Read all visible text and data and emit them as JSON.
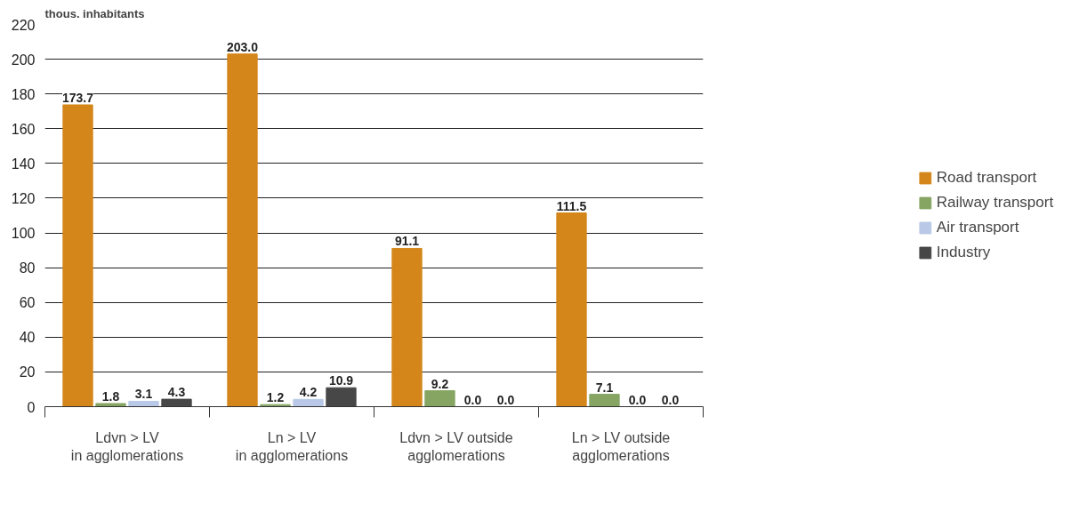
{
  "chart_data": {
    "type": "bar",
    "ylabel": "thous. inhabitants",
    "categories": [
      "Ldvn > LV\nin agglomerations",
      "Ln > LV\nin agglomerations",
      "Ldvn > LV outside\nagglomerations",
      "Ln > LV outside\nagglomerations"
    ],
    "series": [
      {
        "name": "Road transport",
        "color": "#d4861a",
        "values": [
          173.7,
          203.0,
          91.1,
          111.5
        ],
        "value_labels": [
          "173.7",
          "203.0",
          "91.1",
          "111.5"
        ]
      },
      {
        "name": "Railway transport",
        "color": "#86a563",
        "values": [
          1.8,
          1.2,
          9.2,
          7.1
        ],
        "value_labels": [
          "1.8",
          "1.2",
          "9.2",
          "7.1"
        ]
      },
      {
        "name": "Air transport",
        "color": "#b8c8e6",
        "values": [
          3.1,
          4.2,
          0.0,
          0.0
        ],
        "value_labels": [
          "3.1",
          "4.2",
          "0.0",
          "0.0"
        ]
      },
      {
        "name": "Industry",
        "color": "#474747",
        "values": [
          4.3,
          10.9,
          0.0,
          0.0
        ],
        "value_labels": [
          "4.3",
          "10.9",
          "0.0",
          "0.0"
        ]
      }
    ],
    "ylim": [
      0,
      220
    ],
    "yticks": [
      0,
      20,
      40,
      60,
      80,
      100,
      120,
      140,
      160,
      180,
      200,
      220
    ],
    "grid": "y",
    "legend": "right"
  }
}
